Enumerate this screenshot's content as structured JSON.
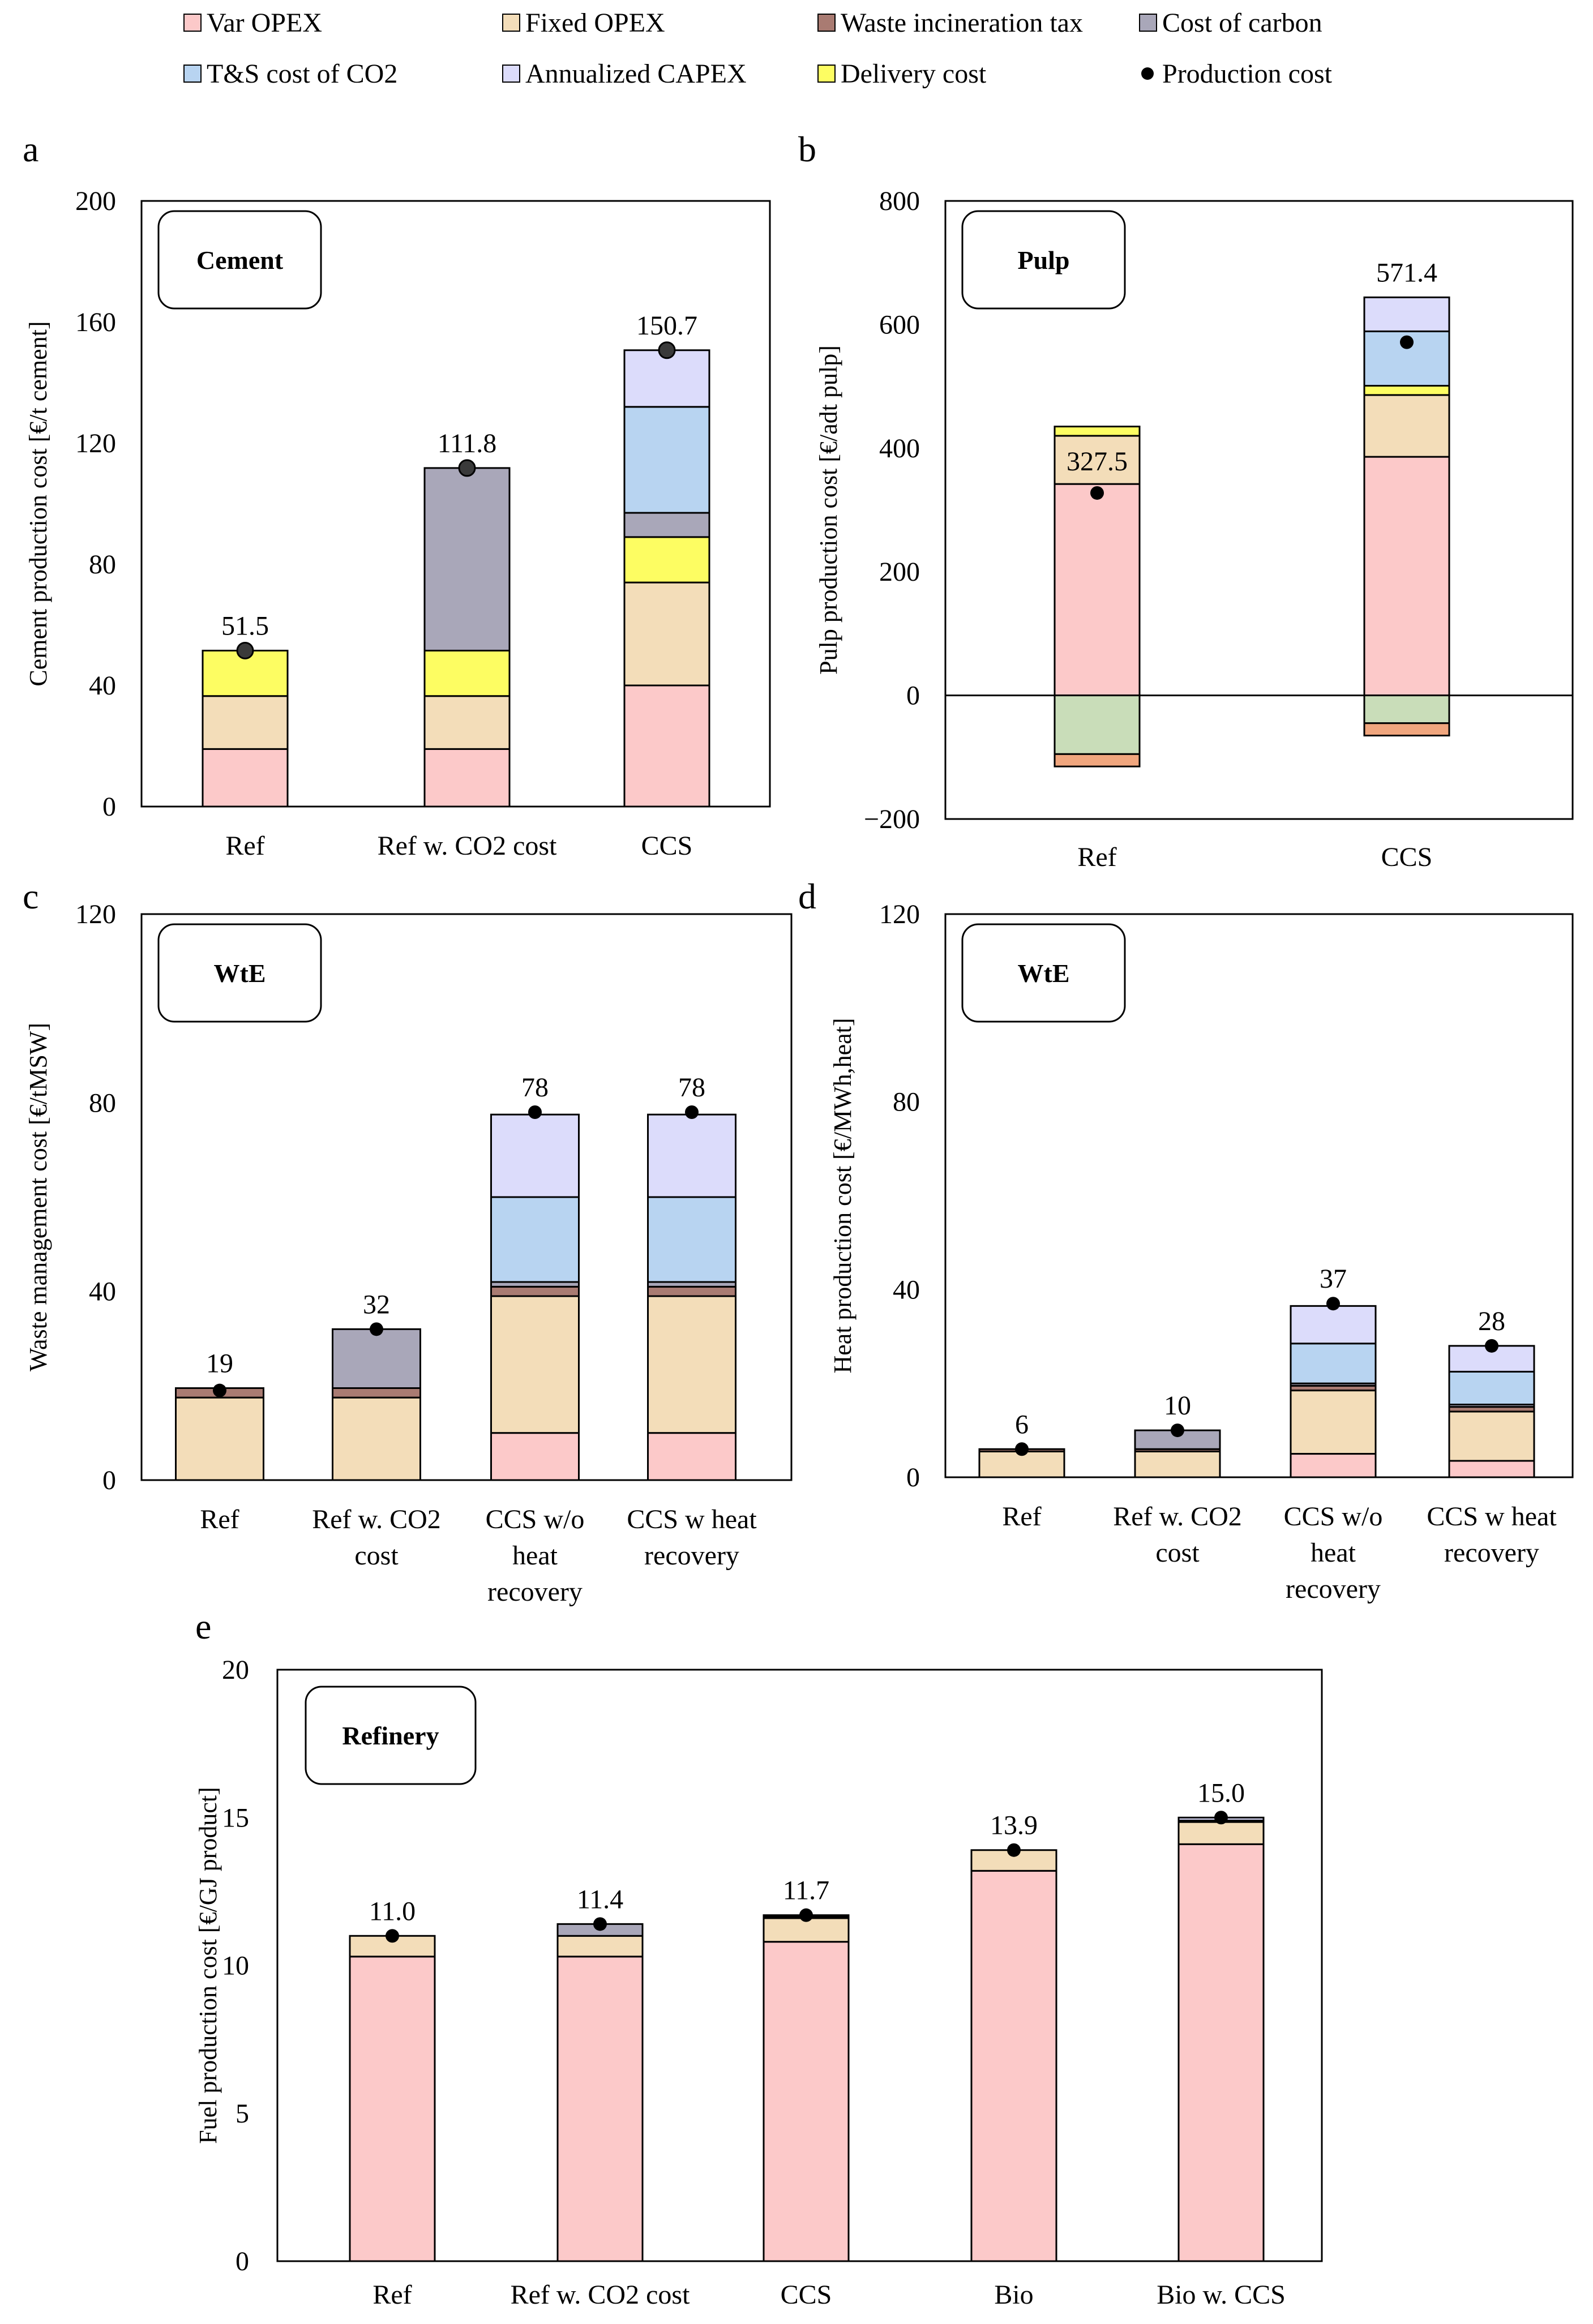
{
  "legend": [
    {
      "key": "var_opex",
      "label": "Var OPEX",
      "color": "#fcc9c9",
      "kind": "box"
    },
    {
      "key": "fixed_opex",
      "label": "Fixed OPEX",
      "color": "#f3ddb9",
      "kind": "box"
    },
    {
      "key": "waste_tax",
      "label": "Waste incineration tax",
      "color": "#a97b72",
      "kind": "box"
    },
    {
      "key": "cost_carbon",
      "label": "Cost of carbon",
      "color": "#a9a7b9",
      "kind": "box"
    },
    {
      "key": "ts_cost",
      "label": "T&S cost of CO2",
      "color": "#b8d4f1",
      "kind": "box"
    },
    {
      "key": "capex",
      "label": "Annualized CAPEX",
      "color": "#dcdcfb",
      "kind": "box"
    },
    {
      "key": "delivery",
      "label": "Delivery cost",
      "color": "#fdfd62",
      "kind": "box"
    },
    {
      "key": "production_cost",
      "label": "Production cost",
      "color": "#000000",
      "kind": "dot"
    }
  ],
  "extra_colors": {
    "green": "#c9ddb9",
    "orange": "#f0a67e"
  },
  "chart_data": [
    {
      "id": "a",
      "letter": "a",
      "type": "bar",
      "stacked": true,
      "title": "Cement",
      "ylabel": "Cement production cost [€/t cement]",
      "ylim": [
        0,
        200
      ],
      "yticks": [
        0,
        40,
        80,
        120,
        160,
        200
      ],
      "categories": [
        "Ref",
        "Ref w. CO2 cost",
        "CCS"
      ],
      "cat_lines": [
        [
          "Ref"
        ],
        [
          "Ref w. CO2 cost"
        ],
        [
          "CCS"
        ]
      ],
      "series": [
        {
          "name": "Var OPEX",
          "color": "#fcc9c9",
          "values": [
            19,
            19,
            40
          ]
        },
        {
          "name": "Fixed OPEX",
          "color": "#f3ddb9",
          "values": [
            17.5,
            17.5,
            34
          ]
        },
        {
          "name": "Delivery cost",
          "color": "#fdfd62",
          "values": [
            15,
            15,
            15
          ]
        },
        {
          "name": "Cost of carbon",
          "color": "#a9a7b9",
          "values": [
            0,
            60.3,
            8
          ]
        },
        {
          "name": "T&S cost of CO2",
          "color": "#b8d4f1",
          "values": [
            0,
            0,
            35
          ]
        },
        {
          "name": "Annualized CAPEX",
          "color": "#dcdcfb",
          "values": [
            0,
            0,
            18.7
          ]
        }
      ],
      "production_cost": [
        51.5,
        111.8,
        150.7
      ],
      "labels": [
        "51.5",
        "111.8",
        "150.7"
      ],
      "dot_style": "ringed"
    },
    {
      "id": "b",
      "letter": "b",
      "type": "bar",
      "stacked": true,
      "title": "Pulp",
      "ylabel": "Pulp production cost [€/adt pulp]",
      "ylim": [
        -200,
        800
      ],
      "yticks": [
        -200,
        0,
        200,
        400,
        600,
        800
      ],
      "tick_labels": [
        "−200",
        "0",
        "200",
        "400",
        "600",
        "800"
      ],
      "categories": [
        "Ref",
        "CCS"
      ],
      "cat_lines": [
        [
          "Ref"
        ],
        [
          "CCS"
        ]
      ],
      "series": [
        {
          "name": "Var OPEX",
          "color": "#fcc9c9",
          "values": [
            342,
            386
          ]
        },
        {
          "name": "Fixed OPEX",
          "color": "#f3ddb9",
          "values": [
            78,
            100
          ]
        },
        {
          "name": "Delivery cost",
          "color": "#fdfd62",
          "values": [
            15,
            15
          ]
        },
        {
          "name": "T&S cost of CO2",
          "color": "#b8d4f1",
          "values": [
            0,
            88
          ]
        },
        {
          "name": "Annualized CAPEX",
          "color": "#dcdcfb",
          "values": [
            0,
            55
          ]
        }
      ],
      "negative_series": [
        {
          "name": "green",
          "color": "#c9ddb9",
          "values": [
            -95,
            -45
          ]
        },
        {
          "name": "orange",
          "color": "#f0a67e",
          "values": [
            -20,
            -20
          ]
        }
      ],
      "production_cost": [
        327.5,
        571.4
      ],
      "labels": [
        "327.5",
        "571.4"
      ],
      "label_inside": [
        true,
        false
      ],
      "dot_style": "plain"
    },
    {
      "id": "c",
      "letter": "c",
      "type": "bar",
      "stacked": true,
      "title": "WtE",
      "ylabel": "Waste management cost [€/tMSW]",
      "ylim": [
        0,
        120
      ],
      "yticks": [
        0,
        40,
        80,
        120
      ],
      "categories": [
        "Ref",
        "Ref w. CO2 cost",
        "CCS w/o heat recovery",
        "CCS w heat recovery"
      ],
      "cat_lines": [
        [
          "Ref"
        ],
        [
          "Ref w. CO2",
          "cost"
        ],
        [
          "CCS w/o",
          "heat",
          "recovery"
        ],
        [
          "CCS w heat",
          "recovery"
        ]
      ],
      "series": [
        {
          "name": "Var OPEX",
          "color": "#fcc9c9",
          "values": [
            0,
            0,
            10,
            10
          ]
        },
        {
          "name": "Fixed OPEX",
          "color": "#f3ddb9",
          "values": [
            17.5,
            17.5,
            29,
            29
          ]
        },
        {
          "name": "Waste incineration tax",
          "color": "#a97b72",
          "values": [
            2,
            2,
            2,
            2
          ]
        },
        {
          "name": "Cost of carbon",
          "color": "#a9a7b9",
          "values": [
            0,
            12.5,
            1,
            1
          ]
        },
        {
          "name": "T&S cost of CO2",
          "color": "#b8d4f1",
          "values": [
            0,
            0,
            18,
            18
          ]
        },
        {
          "name": "Annualized CAPEX",
          "color": "#dcdcfb",
          "values": [
            0,
            0,
            17.5,
            17.5
          ]
        }
      ],
      "production_cost": [
        19,
        32,
        78,
        78
      ],
      "labels": [
        "19",
        "32",
        "78",
        "78"
      ],
      "dot_style": "plain"
    },
    {
      "id": "d",
      "letter": "d",
      "type": "bar",
      "stacked": true,
      "title": "WtE",
      "ylabel": "Heat production cost [€/MWh,heat]",
      "ylim": [
        0,
        120
      ],
      "yticks": [
        0,
        40,
        80,
        120
      ],
      "categories": [
        "Ref",
        "Ref w. CO2 cost",
        "CCS w/o heat recovery",
        "CCS w heat recovery"
      ],
      "cat_lines": [
        [
          "Ref"
        ],
        [
          "Ref w. CO2",
          "cost"
        ],
        [
          "CCS w/o",
          "heat",
          "recovery"
        ],
        [
          "CCS w heat",
          "recovery"
        ]
      ],
      "series": [
        {
          "name": "Var OPEX",
          "color": "#fcc9c9",
          "values": [
            0,
            0,
            5,
            3.5
          ]
        },
        {
          "name": "Fixed OPEX",
          "color": "#f3ddb9",
          "values": [
            5.5,
            5.5,
            13.5,
            10.5
          ]
        },
        {
          "name": "Waste incineration tax",
          "color": "#a97b72",
          "values": [
            0.5,
            0.5,
            1,
            1
          ]
        },
        {
          "name": "Cost of carbon",
          "color": "#a9a7b9",
          "values": [
            0,
            4,
            0.5,
            0.5
          ]
        },
        {
          "name": "T&S cost of CO2",
          "color": "#b8d4f1",
          "values": [
            0,
            0,
            8.5,
            7
          ]
        },
        {
          "name": "Annualized CAPEX",
          "color": "#dcdcfb",
          "values": [
            0,
            0,
            8,
            5.5
          ]
        }
      ],
      "production_cost": [
        6,
        10,
        37,
        28
      ],
      "labels": [
        "6",
        "10",
        "37",
        "28"
      ],
      "dot_style": "plain"
    },
    {
      "id": "e",
      "letter": "e",
      "type": "bar",
      "stacked": true,
      "title": "Refinery",
      "ylabel": "Fuel production cost [€/GJ product]",
      "ylim": [
        0,
        20
      ],
      "yticks": [
        0,
        5,
        10,
        15,
        20
      ],
      "categories": [
        "Ref",
        "Ref w. CO2 cost",
        "CCS",
        "Bio",
        "Bio w. CCS"
      ],
      "cat_lines": [
        [
          "Ref"
        ],
        [
          "Ref w. CO2 cost"
        ],
        [
          "CCS"
        ],
        [
          "Bio"
        ],
        [
          "Bio w. CCS"
        ]
      ],
      "series": [
        {
          "name": "Var OPEX",
          "color": "#fcc9c9",
          "values": [
            10.3,
            10.3,
            10.8,
            13.2,
            14.1
          ]
        },
        {
          "name": "Fixed OPEX",
          "color": "#f3ddb9",
          "values": [
            0.7,
            0.7,
            0.8,
            0.7,
            0.75
          ]
        },
        {
          "name": "Cost of carbon",
          "color": "#a9a7b9",
          "values": [
            0,
            0.4,
            0,
            0,
            0
          ]
        },
        {
          "name": "T&S cost of CO2",
          "color": "#b8d4f1",
          "values": [
            0,
            0,
            0.05,
            0,
            0.05
          ]
        },
        {
          "name": "Annualized CAPEX",
          "color": "#dcdcfb",
          "values": [
            0,
            0,
            0.05,
            0,
            0.1
          ]
        }
      ],
      "production_cost": [
        11.0,
        11.4,
        11.7,
        13.9,
        15.0
      ],
      "labels": [
        "11.0",
        "11.4",
        "11.7",
        "13.9",
        "15.0"
      ],
      "dot_style": "plain"
    }
  ]
}
